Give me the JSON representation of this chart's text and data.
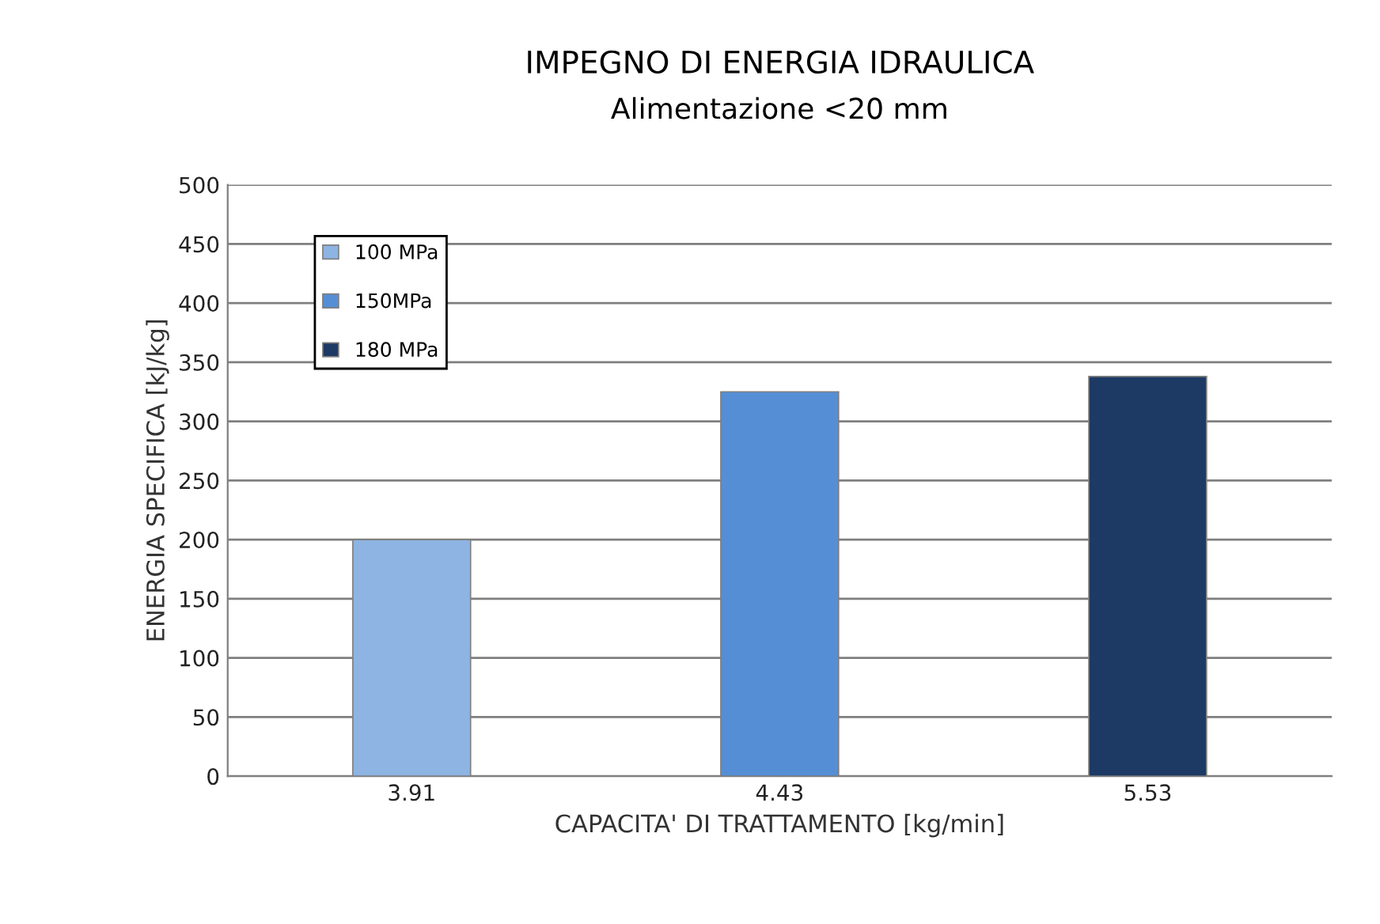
{
  "chart_data": {
    "type": "bar",
    "title": "IMPEGNO DI ENERGIA IDRAULICA",
    "subtitle": "Alimentazione <20 mm",
    "xlabel": "CAPACITA' DI TRATTAMENTO [kg/min]",
    "ylabel": "ENERGIA SPECIFICA [kJ/kg]",
    "categories": [
      "3.91",
      "4.43",
      "5.53"
    ],
    "series": [
      {
        "name": "100 MPa",
        "color": "#8db4e2",
        "values": [
          200,
          null,
          null
        ]
      },
      {
        "name": "150MPa",
        "color": "#558ed5",
        "values": [
          null,
          325,
          null
        ]
      },
      {
        "name": "180 MPa",
        "color": "#1c3a64",
        "values": [
          null,
          null,
          338
        ]
      }
    ],
    "ylim": [
      0,
      500
    ],
    "yticks": [
      0,
      50,
      100,
      150,
      200,
      250,
      300,
      350,
      400,
      450,
      500
    ],
    "grid": "y",
    "legend": "top left"
  }
}
